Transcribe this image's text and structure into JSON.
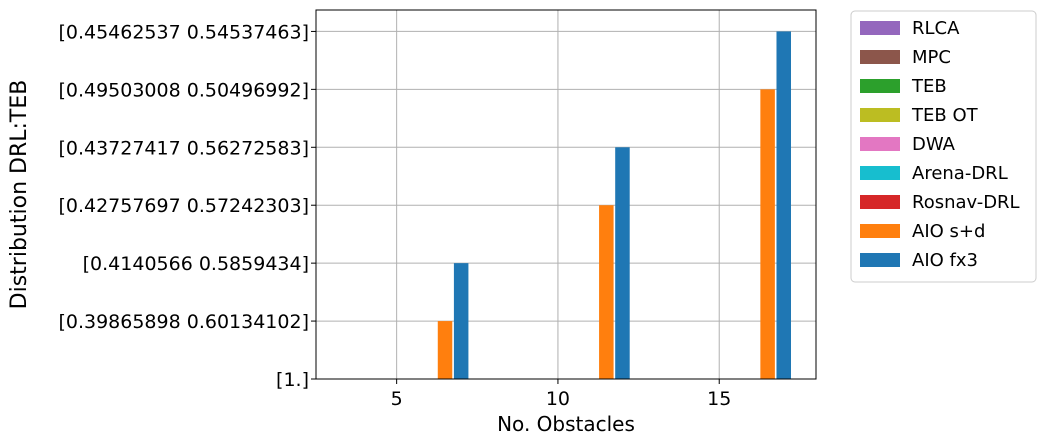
{
  "chart_data": {
    "type": "bar",
    "xlabel": "No. Obstacles",
    "ylabel": "Distribution DRL:TEB",
    "x_ticks": [
      5,
      10,
      15
    ],
    "xlim": [
      2.5,
      18
    ],
    "y_tick_labels": [
      "[1.]",
      "[0.39865898 0.60134102]",
      "[0.4140566 0.5859434]",
      "[0.42757697 0.57242303]",
      "[0.43727417 0.56272583]",
      "[0.49503008 0.50496992]",
      "[0.45462537 0.54537463]"
    ],
    "grid": true,
    "legend_placement": "outside-upper-right",
    "legend": [
      {
        "name": "RLCA",
        "color": "#9467bd"
      },
      {
        "name": "MPC",
        "color": "#8c564b"
      },
      {
        "name": "TEB",
        "color": "#2ca02c"
      },
      {
        "name": "TEB OT",
        "color": "#bcbd22"
      },
      {
        "name": "DWA",
        "color": "#e377c2"
      },
      {
        "name": "Arena-DRL",
        "color": "#17becf"
      },
      {
        "name": "Rosnav-DRL",
        "color": "#d62728"
      },
      {
        "name": "AIO s+d",
        "color": "#ff7f0e"
      },
      {
        "name": "AIO fx3",
        "color": "#1f77b4"
      }
    ],
    "series": [
      {
        "name": "AIO s+d",
        "color": "#ff7f0e",
        "x": [
          6.5,
          11.5,
          16.5
        ],
        "y_level": [
          1,
          3,
          5
        ]
      },
      {
        "name": "AIO fx3",
        "color": "#1f77b4",
        "x": [
          7,
          12,
          17
        ],
        "y_level": [
          2,
          4,
          6
        ]
      }
    ]
  }
}
